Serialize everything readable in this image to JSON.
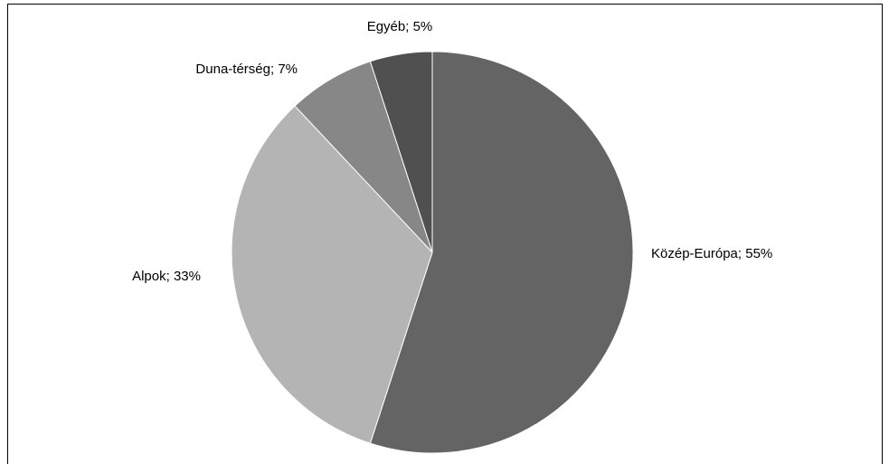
{
  "chart_data": {
    "type": "pie",
    "categories": [
      "Közép-Európa",
      "Alpok",
      "Duna-térség",
      "Egyéb"
    ],
    "values": [
      55,
      33,
      7,
      5
    ],
    "value_labels": [
      "55%",
      "33%",
      "7%",
      "5%"
    ],
    "label_separator": "; ",
    "colors": [
      "#646464",
      "#b4b4b4",
      "#878787",
      "#505050"
    ]
  }
}
